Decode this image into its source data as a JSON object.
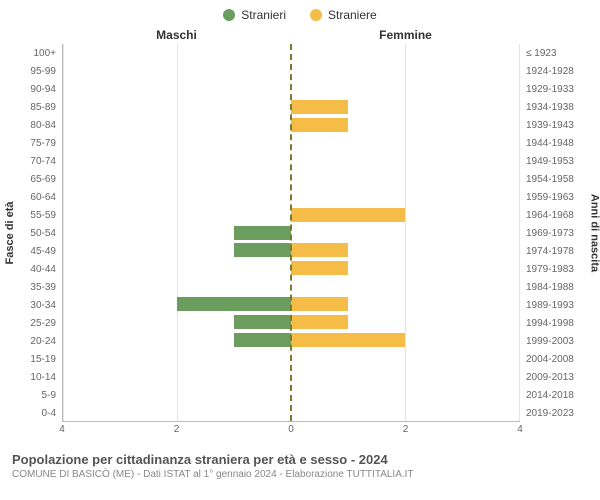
{
  "legend": {
    "male": {
      "label": "Stranieri",
      "color": "#6b9e5e"
    },
    "female": {
      "label": "Straniere",
      "color": "#f5bd47"
    }
  },
  "headers": {
    "left": "Maschi",
    "right": "Femmine"
  },
  "axis_labels": {
    "left": "Fasce di età",
    "right": "Anni di nascita"
  },
  "x": {
    "max": 4,
    "ticks": [
      4,
      2,
      0,
      2,
      4
    ]
  },
  "grid_color": "#e5e5e5",
  "center_line_color": "#7a7a2c",
  "rows": [
    {
      "age": "100+",
      "birth": "≤ 1923",
      "m": 0,
      "f": 0
    },
    {
      "age": "95-99",
      "birth": "1924-1928",
      "m": 0,
      "f": 0
    },
    {
      "age": "90-94",
      "birth": "1929-1933",
      "m": 0,
      "f": 0
    },
    {
      "age": "85-89",
      "birth": "1934-1938",
      "m": 0,
      "f": 1
    },
    {
      "age": "80-84",
      "birth": "1939-1943",
      "m": 0,
      "f": 1
    },
    {
      "age": "75-79",
      "birth": "1944-1948",
      "m": 0,
      "f": 0
    },
    {
      "age": "70-74",
      "birth": "1949-1953",
      "m": 0,
      "f": 0
    },
    {
      "age": "65-69",
      "birth": "1954-1958",
      "m": 0,
      "f": 0
    },
    {
      "age": "60-64",
      "birth": "1959-1963",
      "m": 0,
      "f": 0
    },
    {
      "age": "55-59",
      "birth": "1964-1968",
      "m": 0,
      "f": 2
    },
    {
      "age": "50-54",
      "birth": "1969-1973",
      "m": 1,
      "f": 0
    },
    {
      "age": "45-49",
      "birth": "1974-1978",
      "m": 1,
      "f": 1
    },
    {
      "age": "40-44",
      "birth": "1979-1983",
      "m": 0,
      "f": 1
    },
    {
      "age": "35-39",
      "birth": "1984-1988",
      "m": 0,
      "f": 0
    },
    {
      "age": "30-34",
      "birth": "1989-1993",
      "m": 2,
      "f": 1
    },
    {
      "age": "25-29",
      "birth": "1994-1998",
      "m": 1,
      "f": 1
    },
    {
      "age": "20-24",
      "birth": "1999-2003",
      "m": 1,
      "f": 2
    },
    {
      "age": "15-19",
      "birth": "2004-2008",
      "m": 0,
      "f": 0
    },
    {
      "age": "10-14",
      "birth": "2009-2013",
      "m": 0,
      "f": 0
    },
    {
      "age": "5-9",
      "birth": "2014-2018",
      "m": 0,
      "f": 0
    },
    {
      "age": "0-4",
      "birth": "2019-2023",
      "m": 0,
      "f": 0
    }
  ],
  "caption": {
    "title": "Popolazione per cittadinanza straniera per età e sesso - 2024",
    "subtitle": "COMUNE DI BASICÒ (ME) - Dati ISTAT al 1° gennaio 2024 - Elaborazione TUTTITALIA.IT"
  }
}
